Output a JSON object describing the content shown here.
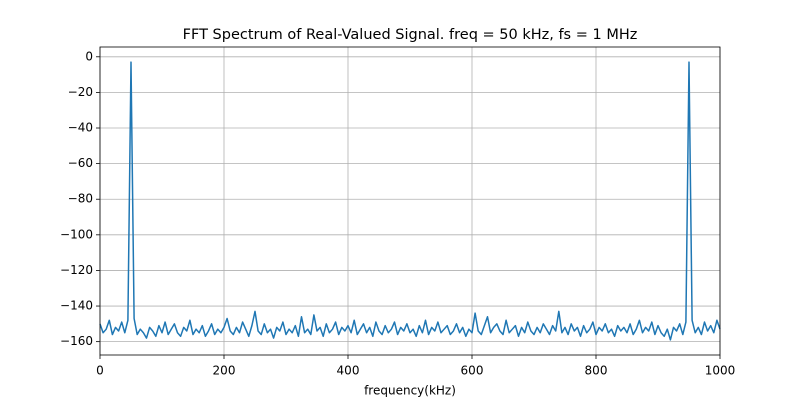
{
  "chart_data": {
    "type": "line",
    "title": "FFT Spectrum of Real-Valued Signal. freq = 50 kHz, fs = 1 MHz",
    "x_label": "frequency(kHz)",
    "xlim": [
      0,
      1000
    ],
    "ylim": [
      -167.5,
      5.5
    ],
    "xticks": [
      0,
      200,
      400,
      600,
      800,
      1000
    ],
    "yticks": [
      0,
      {
        "value": -20,
        "label": "−20"
      },
      {
        "value": -40,
        "label": "−40"
      },
      {
        "value": -60,
        "label": "−60"
      },
      {
        "value": -80,
        "label": "−80"
      },
      {
        "value": -100,
        "label": "−100"
      },
      {
        "value": -120,
        "label": "−120"
      },
      {
        "value": -140,
        "label": "−140"
      },
      {
        "value": -160,
        "label": "−160"
      }
    ],
    "grid": true,
    "x": [
      0,
      5,
      10,
      15,
      20,
      25,
      30,
      35,
      40,
      45,
      50,
      55,
      60,
      65,
      70,
      75,
      80,
      85,
      90,
      95,
      100,
      105,
      110,
      115,
      120,
      125,
      130,
      135,
      140,
      145,
      150,
      155,
      160,
      165,
      170,
      175,
      180,
      185,
      190,
      195,
      200,
      205,
      210,
      215,
      220,
      225,
      230,
      235,
      240,
      245,
      250,
      255,
      260,
      265,
      270,
      275,
      280,
      285,
      290,
      295,
      300,
      305,
      310,
      315,
      320,
      325,
      330,
      335,
      340,
      345,
      350,
      355,
      360,
      365,
      370,
      375,
      380,
      385,
      390,
      395,
      400,
      405,
      410,
      415,
      420,
      425,
      430,
      435,
      440,
      445,
      450,
      455,
      460,
      465,
      470,
      475,
      480,
      485,
      490,
      495,
      500,
      505,
      510,
      515,
      520,
      525,
      530,
      535,
      540,
      545,
      550,
      555,
      560,
      565,
      570,
      575,
      580,
      585,
      590,
      595,
      600,
      605,
      610,
      615,
      620,
      625,
      630,
      635,
      640,
      645,
      650,
      655,
      660,
      665,
      670,
      675,
      680,
      685,
      690,
      695,
      700,
      705,
      710,
      715,
      720,
      725,
      730,
      735,
      740,
      745,
      750,
      755,
      760,
      765,
      770,
      775,
      780,
      785,
      790,
      795,
      800,
      805,
      810,
      815,
      820,
      825,
      830,
      835,
      840,
      845,
      850,
      855,
      860,
      865,
      870,
      875,
      880,
      885,
      890,
      895,
      900,
      905,
      910,
      915,
      920,
      925,
      930,
      935,
      940,
      945,
      950,
      955,
      960,
      965,
      970,
      975,
      980,
      985,
      990,
      995,
      1000
    ],
    "series": [
      {
        "color": "#1f77b4",
        "values": [
          -150,
          -155,
          -153,
          -148,
          -156,
          -152,
          -154,
          -149,
          -155,
          -148,
          -3,
          -147,
          -156,
          -153,
          -155,
          -158,
          -152,
          -154,
          -157,
          -151,
          -155,
          -149,
          -156,
          -153,
          -150,
          -155,
          -157,
          -152,
          -154,
          -148,
          -156,
          -153,
          -155,
          -151,
          -157,
          -154,
          -150,
          -156,
          -153,
          -155,
          -152,
          -147,
          -154,
          -156,
          -152,
          -155,
          -149,
          -153,
          -157,
          -151,
          -143,
          -154,
          -156,
          -150,
          -155,
          -153,
          -158,
          -152,
          -154,
          -149,
          -156,
          -153,
          -155,
          -151,
          -157,
          -146,
          -155,
          -153,
          -156,
          -145,
          -154,
          -152,
          -157,
          -150,
          -155,
          -153,
          -149,
          -156,
          -152,
          -154,
          -151,
          -155,
          -148,
          -156,
          -153,
          -150,
          -155,
          -152,
          -157,
          -149,
          -154,
          -156,
          -151,
          -155,
          -153,
          -149,
          -156,
          -152,
          -154,
          -150,
          -155,
          -153,
          -157,
          -151,
          -155,
          -148,
          -156,
          -152,
          -154,
          -149,
          -155,
          -153,
          -151,
          -156,
          -154,
          -150,
          -155,
          -152,
          -157,
          -153,
          -155,
          -144,
          -154,
          -156,
          -151,
          -146,
          -155,
          -152,
          -150,
          -154,
          -156,
          -148,
          -155,
          -153,
          -151,
          -157,
          -152,
          -155,
          -149,
          -154,
          -156,
          -152,
          -155,
          -150,
          -153,
          -156,
          -151,
          -154,
          -143,
          -155,
          -152,
          -156,
          -150,
          -154,
          -152,
          -157,
          -151,
          -155,
          -153,
          -149,
          -156,
          -152,
          -154,
          -150,
          -155,
          -153,
          -157,
          -151,
          -154,
          -152,
          -155,
          -150,
          -156,
          -153,
          -148,
          -155,
          -152,
          -154,
          -149,
          -156,
          -151,
          -155,
          -157,
          -153,
          -159,
          -152,
          -154,
          -150,
          -156,
          -149,
          -3,
          -148,
          -155,
          -152,
          -156,
          -149,
          -154,
          -151,
          -155,
          -148,
          -153
        ]
      }
    ]
  }
}
